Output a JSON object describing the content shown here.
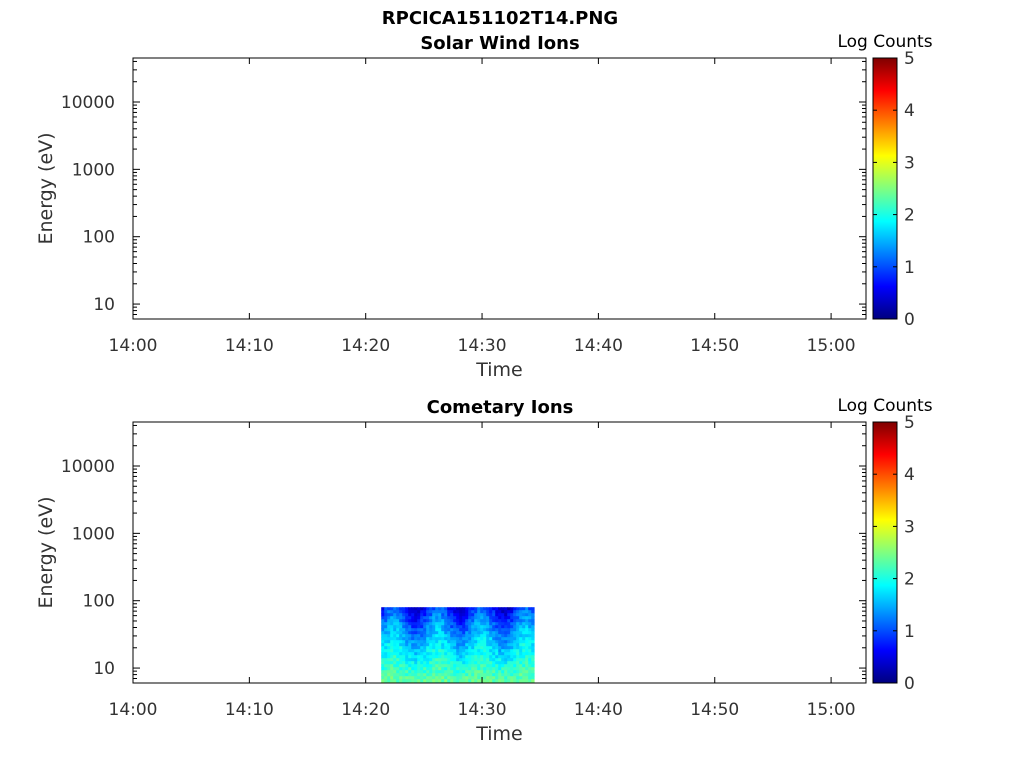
{
  "figure_title": "RPCICA151102T14.PNG",
  "chart_data": [
    {
      "type": "heatmap",
      "title": "Solar Wind Ions",
      "xlabel": "Time",
      "ylabel": "Energy (eV)",
      "x_ticks": [
        "14:00",
        "14:10",
        "14:20",
        "14:30",
        "14:40",
        "14:50",
        "15:00"
      ],
      "xlim": [
        "14:00",
        "15:03"
      ],
      "y_scale": "log",
      "y_ticks": [
        10,
        100,
        1000,
        10000
      ],
      "ylim": [
        6,
        45000
      ],
      "colorbar": {
        "label": "Log Counts",
        "range": [
          0,
          5
        ],
        "ticks": [
          0,
          1,
          2,
          3,
          4,
          5
        ],
        "colormap": "jet"
      },
      "data_present": false
    },
    {
      "type": "heatmap",
      "title": "Cometary Ions",
      "xlabel": "Time",
      "ylabel": "Energy (eV)",
      "x_ticks": [
        "14:00",
        "14:10",
        "14:20",
        "14:30",
        "14:40",
        "14:50",
        "15:00"
      ],
      "xlim": [
        "14:00",
        "15:03"
      ],
      "y_scale": "log",
      "y_ticks": [
        10,
        100,
        1000,
        10000
      ],
      "ylim": [
        6,
        45000
      ],
      "colorbar": {
        "label": "Log Counts",
        "range": [
          0,
          5
        ],
        "ticks": [
          0,
          1,
          2,
          3,
          4,
          5
        ],
        "colormap": "jet"
      },
      "data_present": true,
      "data_region": {
        "time_start": "14:21:20",
        "time_end": "14:34:20",
        "energy_min": 6,
        "energy_max": 80,
        "log_counts_near_energy_max": 0.7,
        "log_counts_near_energy_min": 2.4
      }
    }
  ]
}
